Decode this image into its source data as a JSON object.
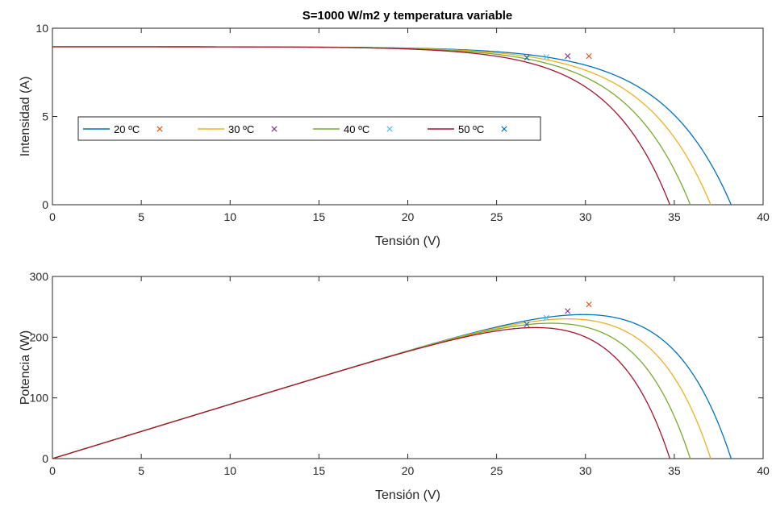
{
  "chart_data": [
    {
      "type": "line",
      "title": "S=1000 W/m2 y temperatura variable",
      "xlabel": "Tensión (V)",
      "ylabel": "Intensidad (A)",
      "xlim": [
        0,
        40
      ],
      "ylim": [
        0,
        10
      ],
      "xticks": [
        "0",
        "5",
        "10",
        "15",
        "20",
        "25",
        "30",
        "35",
        "40"
      ],
      "yticks": [
        "0",
        "5",
        "10"
      ],
      "grid": false,
      "legend_position": "west",
      "series": [
        {
          "name": "20 ºC",
          "color": "#0072BD",
          "isc": 8.95,
          "voc": 38.2,
          "mpp": [
            30.2,
            8.42
          ],
          "mpp_color": "#D95319"
        },
        {
          "name": "30 ºC",
          "color": "#EDB120",
          "isc": 8.95,
          "voc": 37.05,
          "mpp": [
            29.0,
            8.42
          ],
          "mpp_color": "#7E2F8E"
        },
        {
          "name": "40 ºC",
          "color": "#77AC30",
          "isc": 8.95,
          "voc": 35.9,
          "mpp": [
            27.8,
            8.37
          ],
          "mpp_color": "#4DBEEE"
        },
        {
          "name": "50 ºC",
          "color": "#A2142F",
          "isc": 8.95,
          "voc": 34.75,
          "mpp": [
            26.7,
            8.33
          ],
          "mpp_color": "#0072BD"
        }
      ],
      "legend_entries": [
        "20 ºC",
        "",
        "30 ºC",
        "",
        "40 ºC",
        "",
        "50 ºC",
        ""
      ]
    },
    {
      "type": "line",
      "title": "",
      "xlabel": "Tensión (V)",
      "ylabel": "Potencia (W)",
      "xlim": [
        0,
        40
      ],
      "ylim": [
        0,
        300
      ],
      "xticks": [
        "0",
        "5",
        "10",
        "15",
        "20",
        "25",
        "30",
        "35",
        "40"
      ],
      "yticks": [
        "0",
        "100",
        "200",
        "300"
      ],
      "grid": false,
      "series": [
        {
          "color": "#0072BD",
          "isc": 8.95,
          "voc": 38.2,
          "mpp": [
            30.2,
            254
          ],
          "mpp_color": "#D95319"
        },
        {
          "color": "#EDB120",
          "isc": 8.95,
          "voc": 37.05,
          "mpp": [
            29.0,
            243
          ],
          "mpp_color": "#7E2F8E"
        },
        {
          "color": "#77AC30",
          "isc": 8.95,
          "voc": 35.9,
          "mpp": [
            27.8,
            232
          ],
          "mpp_color": "#4DBEEE"
        },
        {
          "color": "#A2142F",
          "isc": 8.95,
          "voc": 34.75,
          "mpp": [
            26.7,
            221
          ],
          "mpp_color": "#0072BD"
        }
      ]
    }
  ]
}
